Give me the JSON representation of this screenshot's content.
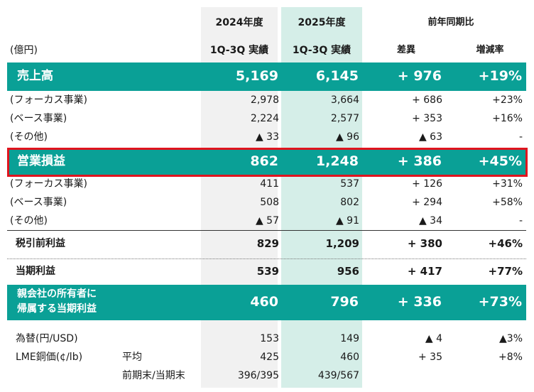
{
  "header": {
    "col_2024_year": "2024年度",
    "col_2025_year": "2025年度",
    "yoy_title": "前年同期比",
    "unit": "(億円)",
    "col_2024_sub": "1Q-3Q 実績",
    "col_2025_sub": "1Q-3Q 実績",
    "diff": "差異",
    "rate": "増減率"
  },
  "rows": {
    "sales": {
      "label": "売上高",
      "v2024": "5,169",
      "v2025": "6,145",
      "diff": "+ 976",
      "rate": "+19%"
    },
    "sales_focus": {
      "label": "(フォーカス事業)",
      "v2024": "2,978",
      "v2025": "3,664",
      "diff": "+ 686",
      "rate": "+23%"
    },
    "sales_base": {
      "label": "(ベース事業)",
      "v2024": "2,224",
      "v2025": "2,577",
      "diff": "+ 353",
      "rate": "+16%"
    },
    "sales_other": {
      "label": "(その他)",
      "v2024": "▲ 33",
      "v2025": "▲ 96",
      "diff": "▲ 63",
      "rate": "-"
    },
    "op": {
      "label": "営業損益",
      "v2024": "862",
      "v2025": "1,248",
      "diff": "+ 386",
      "rate": "+45%"
    },
    "op_focus": {
      "label": "(フォーカス事業)",
      "v2024": "411",
      "v2025": "537",
      "diff": "+ 126",
      "rate": "+31%"
    },
    "op_base": {
      "label": "(ベース事業)",
      "v2024": "508",
      "v2025": "802",
      "diff": "+ 294",
      "rate": "+58%"
    },
    "op_other": {
      "label": "(その他)",
      "v2024": "▲ 57",
      "v2025": "▲ 91",
      "diff": "▲ 34",
      "rate": "-"
    },
    "pretax": {
      "label": "税引前利益",
      "v2024": "829",
      "v2025": "1,209",
      "diff": "+ 380",
      "rate": "+46%"
    },
    "net": {
      "label": "当期利益",
      "v2024": "539",
      "v2025": "956",
      "diff": "+ 417",
      "rate": "+77%"
    },
    "parent": {
      "label1": "親会社の所有者に",
      "label2": "帰属する当期利益",
      "v2024": "460",
      "v2025": "796",
      "diff": "+ 336",
      "rate": "+73%"
    },
    "fx": {
      "label": "為替(円/USD)",
      "v2024": "153",
      "v2025": "149",
      "diff": "▲ 4",
      "rate": "▲3%"
    },
    "lme": {
      "label": "LME銅価(¢/lb)",
      "sub": "平均",
      "v2024": "425",
      "v2025": "460",
      "diff": "+ 35",
      "rate": "+8%"
    },
    "lme_end": {
      "sub": "前期末/当期末",
      "v2024": "396/395",
      "v2025": "439/567"
    }
  },
  "colors": {
    "accent": "#0aa096",
    "highlight_border": "#e0141e",
    "col_2025_bg": "#d5eee8",
    "col_2024_bg": "#f1f1f1"
  }
}
